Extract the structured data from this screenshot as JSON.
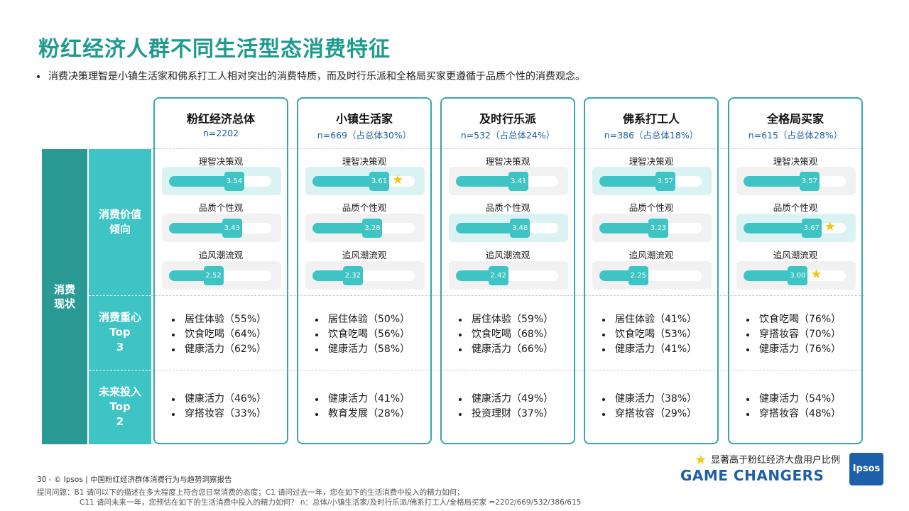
{
  "title": "粉红经济人群不同生活型态消费特征",
  "subtitle": "消费决策理智是小镇生活家和佛系打工人相对突出的消费特质，而及时行乐派和全格局买家更遵循于品质个性的消费观念。",
  "row_labels": {
    "main": "消费现状",
    "values": "消费价值倾向",
    "focus": "消费重心 Top 3",
    "future": "未来投入 Top 2"
  },
  "columns": [
    {
      "name": "粉红经济总体",
      "n": "n=2202",
      "metrics": [
        {
          "label": "理智决策观",
          "value": 3.54,
          "display": "3.54",
          "star": false,
          "highlight": true
        },
        {
          "label": "品质个性观",
          "value": 3.43,
          "display": "3.43",
          "star": false,
          "highlight": false
        },
        {
          "label": "追风潮流观",
          "value": 2.52,
          "display": "2.52",
          "star": false,
          "highlight": false
        }
      ],
      "focus": [
        "居住体验（55%）",
        "饮食吃喝（64%）",
        "健康活力（62%）"
      ],
      "future": [
        "健康活力（46%）",
        "穿搭妆容（33%）"
      ]
    },
    {
      "name": "小镇生活家",
      "n": "n=669（占总体30%）",
      "metrics": [
        {
          "label": "理智决策观",
          "value": 3.61,
          "display": "3.61",
          "star": true,
          "highlight": true
        },
        {
          "label": "品质个性观",
          "value": 3.28,
          "display": "3.28",
          "star": false,
          "highlight": false
        },
        {
          "label": "追风潮流观",
          "value": 2.32,
          "display": "2.32",
          "star": false,
          "highlight": false
        }
      ],
      "focus": [
        "居住体验（50%）",
        "饮食吃喝（56%）",
        "健康活力（58%）"
      ],
      "future": [
        "健康活力（41%）",
        "教育发展（28%）"
      ]
    },
    {
      "name": "及时行乐派",
      "n": "n=532（占总体24%）",
      "metrics": [
        {
          "label": "理智决策观",
          "value": 3.41,
          "display": "3.41",
          "star": false,
          "highlight": false
        },
        {
          "label": "品质个性观",
          "value": 3.48,
          "display": "3.48",
          "star": false,
          "highlight": true
        },
        {
          "label": "追风潮流观",
          "value": 2.42,
          "display": "2.42",
          "star": false,
          "highlight": false
        }
      ],
      "focus": [
        "居住体验（59%）",
        "饮食吃喝（68%）",
        "健康活力（66%）"
      ],
      "future": [
        "健康活力（49%）",
        "投资理财（37%）"
      ]
    },
    {
      "name": "佛系打工人",
      "n": "n=386（占总体18%）",
      "metrics": [
        {
          "label": "理智决策观",
          "value": 3.57,
          "display": "3.57",
          "star": false,
          "highlight": true
        },
        {
          "label": "品质个性观",
          "value": 3.23,
          "display": "3.23",
          "star": false,
          "highlight": false
        },
        {
          "label": "追风潮流观",
          "value": 2.25,
          "display": "2.25",
          "star": false,
          "highlight": false
        }
      ],
      "focus": [
        "居住体验（41%）",
        "饮食吃喝（53%）",
        "健康活力（41%）"
      ],
      "future": [
        "健康活力（38%）",
        "穿搭妆容（29%）"
      ]
    },
    {
      "name": "全格局买家",
      "n": "n=615（占总体28%）",
      "metrics": [
        {
          "label": "理智决策观",
          "value": 3.57,
          "display": "3.57",
          "star": false,
          "highlight": false
        },
        {
          "label": "品质个性观",
          "value": 3.67,
          "display": "3.67",
          "star": true,
          "highlight": true
        },
        {
          "label": "追风潮流观",
          "value": 3.0,
          "display": "3.00",
          "star": true,
          "highlight": false
        }
      ],
      "focus": [
        "饮食吃喝（76%）",
        "穿搭妆容（70%）",
        "健康活力（76%）"
      ],
      "future": [
        "健康活力（54%）",
        "穿搭妆容（48%）"
      ]
    }
  ],
  "scale_max": 5,
  "legend": "显著高于粉红经济大盘用户比例",
  "footer": "30  -  © Ipsos  |  中国粉红经济群体消费行为与趋势洞察报告",
  "note1": "提问问题：B1 请问以下的描述在多大程度上符合您日常消费的态度；C1 请问过去一年，您在如下的生活消费中投入的精力如何；",
  "note2": "C11 请问未来一年，您预估在如下的生活消费中投入的精力如何？  n：总体/小镇生活家/及时行乐派/佛系打工人/全格局买家 =2202/669/532/386/615",
  "brand": "GAME CHANGERS",
  "logo": "Ipsos",
  "colors": {
    "accent": "#3ec4c4",
    "dark_teal": "#2b9a95",
    "title": "#1f9a8e",
    "blue": "#1d5fa8",
    "star": "#f5c518"
  }
}
